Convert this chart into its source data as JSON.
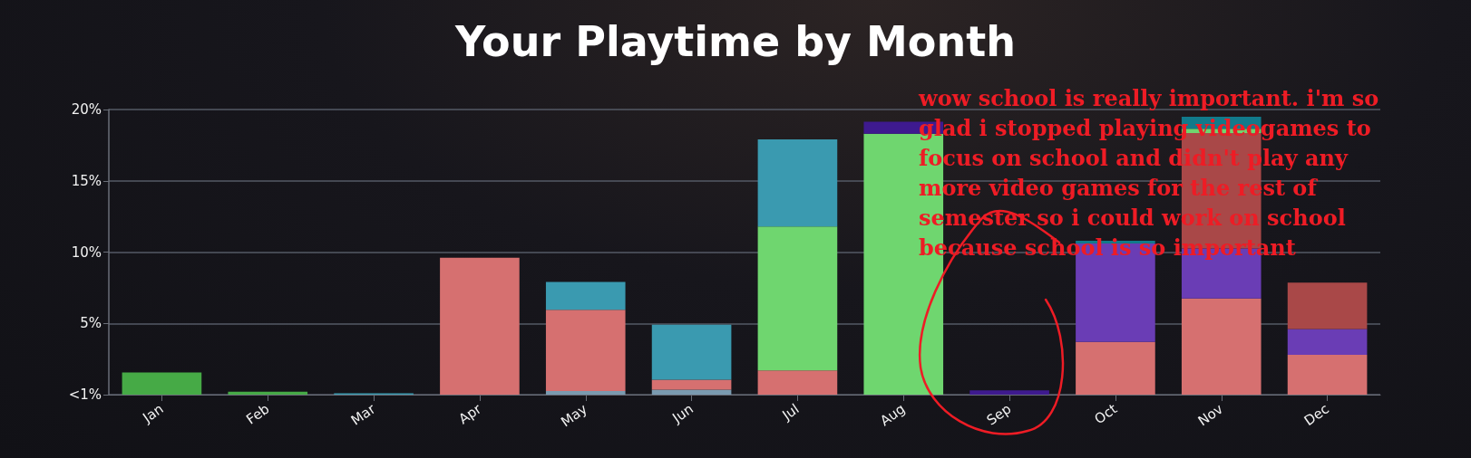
{
  "chart_data": {
    "type": "bar",
    "title": "Your Playtime by Month",
    "stacked": true,
    "categories": [
      "Jan",
      "Feb",
      "Mar",
      "Apr",
      "May",
      "Jun",
      "Jul",
      "Aug",
      "Sep",
      "Oct",
      "Nov",
      "Dec"
    ],
    "series": [
      {
        "color": "#7a9ab0",
        "values": [
          null,
          null,
          null,
          null,
          0.25,
          0.35,
          null,
          null,
          null,
          null,
          null,
          null
        ]
      },
      {
        "color": "#46aa46",
        "values": [
          1.55,
          0.2,
          null,
          null,
          null,
          null,
          null,
          null,
          null,
          null,
          null,
          null
        ]
      },
      {
        "color": "#d67070",
        "values": [
          null,
          null,
          null,
          9.6,
          5.7,
          0.7,
          1.7,
          null,
          null,
          3.7,
          6.75,
          2.8
        ]
      },
      {
        "color": "#6a3db5",
        "values": [
          null,
          null,
          null,
          null,
          null,
          null,
          null,
          null,
          null,
          6.9,
          3.5,
          1.8
        ]
      },
      {
        "color": "#a94848",
        "values": [
          null,
          null,
          null,
          null,
          null,
          null,
          null,
          null,
          null,
          null,
          8.1,
          3.25
        ]
      },
      {
        "color": "#6fd66f",
        "values": [
          null,
          null,
          null,
          null,
          null,
          null,
          10.1,
          18.3,
          null,
          null,
          0.3,
          null
        ]
      },
      {
        "color": "#3e1a8f",
        "values": [
          null,
          null,
          null,
          null,
          null,
          null,
          null,
          0.85,
          0.3,
          null,
          null,
          null
        ]
      },
      {
        "color": "#3a9ab0",
        "values": [
          null,
          null,
          0.1,
          null,
          1.95,
          3.85,
          6.1,
          null,
          null,
          null,
          null,
          null
        ]
      },
      {
        "color": "#117a8b",
        "values": [
          null,
          null,
          null,
          null,
          null,
          null,
          null,
          null,
          null,
          0.2,
          0.85,
          null
        ]
      }
    ],
    "ylim": [
      0,
      20
    ],
    "yticks": [
      {
        "value": 0,
        "label": "<1%"
      },
      {
        "value": 5,
        "label": "5%"
      },
      {
        "value": 10,
        "label": "10%"
      },
      {
        "value": 15,
        "label": "15%"
      },
      {
        "value": 20,
        "label": "20%"
      }
    ],
    "grid": "y",
    "annotations": [
      "wow school is really important. i'm so glad i stopped playing videogames to focus on school and didn't play any more video games for the rest of semester so i could work on school because school is so important"
    ]
  }
}
